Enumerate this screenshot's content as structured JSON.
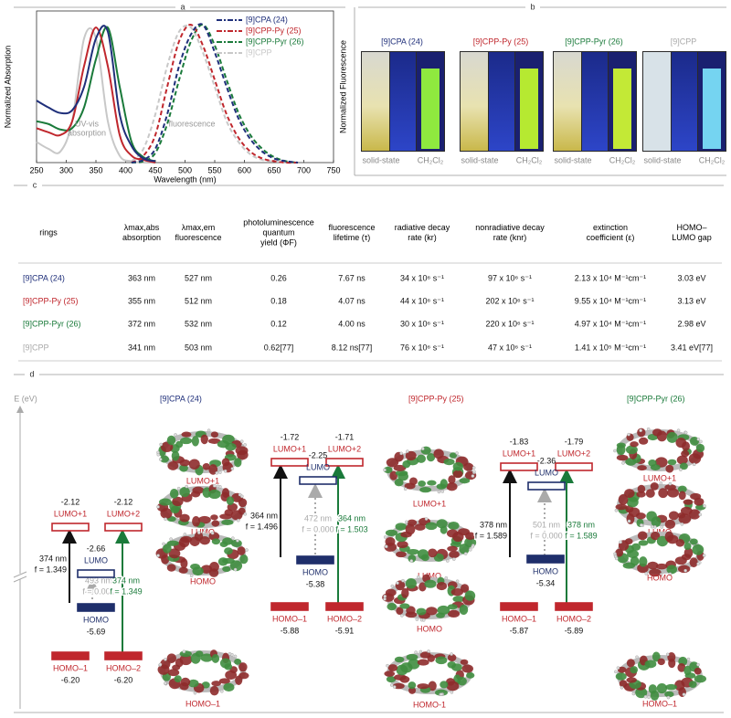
{
  "panel_labels": [
    "a",
    "b",
    "c",
    "d"
  ],
  "chart_data": {
    "type": "line",
    "xlabel": "Wavelength (nm)",
    "ylabel": "Normalized Absorption",
    "y2label": "Normalized Fluorescence",
    "xlim": [
      250,
      750
    ],
    "xticks": [
      250,
      300,
      350,
      400,
      450,
      500,
      550,
      600,
      650,
      700,
      750
    ],
    "ylim": [
      0,
      1.1
    ],
    "legend": "upper right",
    "annotations": {
      "absorption": [
        "UV-vis",
        "absorption"
      ],
      "fluorescence": "fluorescence"
    },
    "x": [
      250,
      270,
      290,
      310,
      330,
      350,
      370,
      390,
      410,
      430,
      450,
      470,
      490,
      510,
      530,
      550,
      570,
      590,
      610,
      630,
      650,
      670,
      690,
      710,
      730,
      750
    ],
    "series": [
      {
        "name": "[9]CPA (24)",
        "color": "#1f2f7a",
        "absorption": [
          0.45,
          0.4,
          0.36,
          0.38,
          0.55,
          0.9,
          0.95,
          0.35,
          0.12,
          0.03,
          0.01,
          null,
          null,
          null,
          null,
          null,
          null,
          null,
          null,
          null,
          null,
          null,
          null,
          null,
          null,
          null
        ],
        "fluorescence": [
          null,
          null,
          null,
          null,
          null,
          null,
          null,
          null,
          0,
          0.02,
          0.1,
          0.35,
          0.7,
          0.93,
          1.0,
          0.8,
          0.55,
          0.32,
          0.17,
          0.08,
          0.03,
          0.01,
          0,
          null,
          null,
          null
        ]
      },
      {
        "name": "[9]CPP-Py (25)",
        "color": "#c0272d",
        "absorption": [
          0.25,
          0.22,
          0.2,
          0.3,
          0.7,
          0.98,
          0.7,
          0.2,
          0.05,
          0.02,
          0,
          null,
          null,
          null,
          null,
          null,
          null,
          null,
          null,
          null,
          null,
          null,
          null,
          null,
          null,
          null
        ],
        "fluorescence": [
          null,
          null,
          null,
          null,
          null,
          null,
          null,
          null,
          0,
          0.05,
          0.2,
          0.55,
          0.88,
          1.0,
          0.85,
          0.6,
          0.35,
          0.18,
          0.08,
          0.03,
          0.01,
          0,
          0,
          null,
          null,
          null
        ]
      },
      {
        "name": "[9]CPP-Pyr (26)",
        "color": "#1a7a3a",
        "absorption": [
          0.3,
          0.28,
          0.24,
          0.25,
          0.4,
          0.75,
          0.98,
          0.55,
          0.15,
          0.04,
          0.01,
          null,
          null,
          null,
          null,
          null,
          null,
          null,
          null,
          null,
          null,
          null,
          null,
          null,
          null,
          null
        ],
        "fluorescence": [
          null,
          null,
          null,
          null,
          null,
          null,
          null,
          null,
          0,
          0.01,
          0.07,
          0.28,
          0.6,
          0.88,
          1.0,
          0.85,
          0.6,
          0.36,
          0.2,
          0.1,
          0.04,
          0.01,
          0,
          null,
          null,
          null
        ]
      },
      {
        "name": "[9]CPP",
        "color": "#c8c8c8",
        "absorption": [
          0.15,
          0.1,
          0.08,
          0.3,
          0.9,
          0.9,
          0.3,
          0.05,
          0.01,
          0,
          0,
          null,
          null,
          null,
          null,
          null,
          null,
          null,
          null,
          null,
          null,
          null,
          null,
          null,
          null,
          null
        ],
        "fluorescence": [
          null,
          null,
          null,
          null,
          null,
          null,
          null,
          null,
          0.01,
          0.1,
          0.35,
          0.7,
          0.95,
          0.98,
          0.8,
          0.55,
          0.3,
          0.15,
          0.06,
          0.02,
          0.01,
          0,
          0,
          null,
          null,
          null
        ]
      }
    ]
  },
  "photos": {
    "items": [
      {
        "name": "[9]CPA (24)",
        "color": "#1f2f7a"
      },
      {
        "name": "[9]CPP-Py (25)",
        "color": "#c0272d"
      },
      {
        "name": "[9]CPP-Pyr (26)",
        "color": "#1a7a3a"
      },
      {
        "name": "[9]CPP",
        "color": "#aaaaaa"
      }
    ],
    "labels": [
      "solid-state",
      "CH₂Cl₂"
    ]
  },
  "table": {
    "header": [
      [
        "rings"
      ],
      [
        "λmax,abs",
        "absorption"
      ],
      [
        "λmax,em",
        "fluorescence"
      ],
      [
        "photoluminescence",
        "quantum",
        "yield (ΦF)"
      ],
      [
        "fluorescence",
        "lifetime (τ)"
      ],
      [
        "radiative decay",
        "rate (kr)"
      ],
      [
        "nonradiative decay",
        "rate (knr)"
      ],
      [
        "extinction",
        "coefficient (ε)"
      ],
      [
        "HOMO–",
        "LUMO gap"
      ]
    ],
    "rows": [
      {
        "color": "#1f2f7a",
        "cells": [
          "[9]CPA (24)",
          "363 nm",
          "527 nm",
          "0.26",
          "7.67 ns",
          "34 x 10⁶ s⁻¹",
          "97 x 10⁶ s⁻¹",
          "2.13  x 10⁴ M⁻¹cm⁻¹",
          "3.03 eV"
        ]
      },
      {
        "color": "#c0272d",
        "cells": [
          "[9]CPP-Py (25)",
          "355 nm",
          "512 nm",
          "0.18",
          "4.07 ns",
          "44 x 10⁶ s⁻¹",
          "202 x 10⁶ s⁻¹",
          "9.55 x 10⁴ M⁻¹cm⁻¹",
          "3.13 eV"
        ]
      },
      {
        "color": "#1a7a3a",
        "cells": [
          "[9]CPP-Pyr (26)",
          "372 nm",
          "532 nm",
          "0.12",
          "4.00 ns",
          "30 x 10⁶ s⁻¹",
          "220 x 10⁶ s⁻¹",
          "4.97 x 10⁴ M⁻¹cm⁻¹",
          "2.98 eV"
        ]
      },
      {
        "color": "#aaaaaa",
        "cells": [
          "[9]CPP",
          "341 nm",
          "503 nm",
          "0.62[77]",
          "8.12 ns[77]",
          "76 x 10⁶ s⁻¹",
          "47 x 10⁶ s⁻¹",
          "1.41 x 10⁵ M⁻¹cm⁻¹",
          "3.41 eV[77]"
        ]
      }
    ]
  },
  "diagram": {
    "axis_label": "E (eV)",
    "sections": [
      {
        "title": "[9]CPA (24)",
        "color": "#1f2f7a",
        "levels": [
          {
            "label": "LUMO+1",
            "energy": "-2.12",
            "color": "#c0272d",
            "filled": false
          },
          {
            "label": "LUMO+2",
            "energy": "-2.12",
            "color": "#c0272d",
            "filled": false
          },
          {
            "label": "LUMO",
            "energy": "-2.66",
            "color": "#1f2f6b",
            "filled": false
          },
          {
            "label": "HOMO",
            "energy": "-5.69",
            "color": "#1f2f6b",
            "filled": true
          },
          {
            "label": "HOMO–1",
            "energy": "-6.20",
            "color": "#c0272d",
            "filled": true
          },
          {
            "label": "HOMO–2",
            "energy": "-6.20",
            "color": "#c0272d",
            "filled": true
          }
        ],
        "transitions": [
          {
            "wavelength": "374 nm",
            "f": "f = 1.349",
            "color": "#111111"
          },
          {
            "wavelength": "493 nm",
            "f": "f = 0.001",
            "color": "#aaaaaa"
          },
          {
            "wavelength": "374 nm",
            "f": "f = 1.349",
            "color": "#1a7a3a"
          }
        ],
        "orbitals": [
          "LUMO+1",
          "LUMO",
          "HOMO",
          "HOMO–1"
        ]
      },
      {
        "title": "[9]CPP-Py (25)",
        "color": "#c0272d",
        "levels": [
          {
            "label": "LUMO+1",
            "energy": "-1.72",
            "color": "#c0272d",
            "filled": false
          },
          {
            "label": "LUMO+2",
            "energy": "-1.71",
            "color": "#c0272d",
            "filled": false
          },
          {
            "label": "LUMO",
            "energy": "-2.25",
            "color": "#1f2f6b",
            "filled": false
          },
          {
            "label": "HOMO",
            "energy": "-5.38",
            "color": "#1f2f6b",
            "filled": true
          },
          {
            "label": "HOMO–1",
            "energy": "-5.88",
            "color": "#c0272d",
            "filled": true
          },
          {
            "label": "HOMO–2",
            "energy": "-5.91",
            "color": "#c0272d",
            "filled": true
          }
        ],
        "transitions": [
          {
            "wavelength": "364 nm",
            "f": "f = 1.496",
            "color": "#111111"
          },
          {
            "wavelength": "472 nm",
            "f": "f = 0.000",
            "color": "#aaaaaa"
          },
          {
            "wavelength": "364 nm",
            "f": "f = 1.503",
            "color": "#1a7a3a"
          }
        ],
        "orbitals": [
          "LUMO+1",
          "LUMO",
          "HOMO",
          "HOMO-1"
        ]
      },
      {
        "title": "[9]CPP-Pyr (26)",
        "color": "#1a7a3a",
        "levels": [
          {
            "label": "LUMO+1",
            "energy": "-1.83",
            "color": "#c0272d",
            "filled": false
          },
          {
            "label": "LUMO+2",
            "energy": "-1.79",
            "color": "#c0272d",
            "filled": false
          },
          {
            "label": "LUMO",
            "energy": "-2.36",
            "color": "#1f2f6b",
            "filled": false
          },
          {
            "label": "HOMO",
            "energy": "-5.34",
            "color": "#1f2f6b",
            "filled": true
          },
          {
            "label": "HOMO–1",
            "energy": "-5.87",
            "color": "#c0272d",
            "filled": true
          },
          {
            "label": "HOMO–2",
            "energy": "-5.89",
            "color": "#c0272d",
            "filled": true
          }
        ],
        "transitions": [
          {
            "wavelength": "378 nm",
            "f": "f = 1.589",
            "color": "#111111"
          },
          {
            "wavelength": "501 nm",
            "f": "f = 0.000",
            "color": "#aaaaaa"
          },
          {
            "wavelength": "378 nm",
            "f": "f = 1.589",
            "color": "#1a7a3a"
          }
        ],
        "orbitals": [
          "LUMO+1",
          "LUMO",
          "HOMO",
          "HOMO–1"
        ]
      }
    ]
  }
}
